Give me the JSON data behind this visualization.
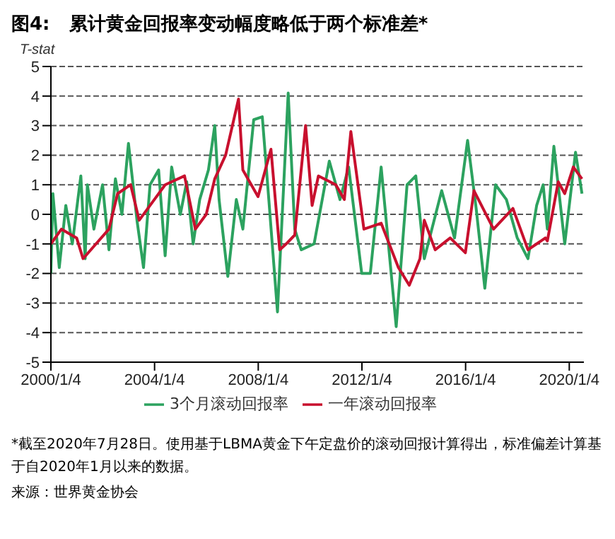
{
  "chart_data": {
    "type": "line",
    "title": "图4:   累计黄金回报率变动幅度略低于两个标准差*",
    "ylabel": "T-stat",
    "xlim": [
      "2000-01-04",
      "2020-07-28"
    ],
    "xticks": [
      {
        "value": "2000-01-04",
        "label": "2000/1/4"
      },
      {
        "value": "2004-01-04",
        "label": "2004/1/4"
      },
      {
        "value": "2008-01-04",
        "label": "2008/1/4"
      },
      {
        "value": "2012-01-04",
        "label": "2012/1/4"
      },
      {
        "value": "2016-01-04",
        "label": "2016/1/4"
      },
      {
        "value": "2020-01-04",
        "label": "2020/1/4"
      }
    ],
    "ylim": [
      -5,
      5
    ],
    "yticks": [
      -5,
      -4,
      -3,
      -2,
      -1,
      0,
      1,
      2,
      3,
      4,
      5
    ],
    "grid": "y",
    "legend": "bottom",
    "marker": "none",
    "line_style": "solid",
    "series": [
      {
        "name": "3个月滚动回报率",
        "color": "#2ca25f",
        "x": [
          "2000-01-04",
          "2000-02",
          "2000-05",
          "2000-08",
          "2000-11",
          "2001-03",
          "2001-05",
          "2001-06",
          "2001-09",
          "2002-01",
          "2002-04",
          "2002-07",
          "2002-10",
          "2003-01",
          "2003-05",
          "2003-08",
          "2003-11",
          "2004-03",
          "2004-06",
          "2004-09",
          "2005-01",
          "2005-04",
          "2005-07",
          "2005-10",
          "2006-02",
          "2006-05",
          "2006-07",
          "2006-11",
          "2007-03",
          "2007-06",
          "2007-11",
          "2008-03",
          "2008-06",
          "2008-10",
          "2009-03",
          "2009-06",
          "2009-09",
          "2010-03",
          "2010-10",
          "2011-03",
          "2011-07",
          "2012-01",
          "2012-05",
          "2012-10",
          "2013-05",
          "2013-10",
          "2014-02",
          "2014-06",
          "2015-02",
          "2015-08",
          "2016-02",
          "2016-06",
          "2016-10",
          "2017-03",
          "2017-08",
          "2018-01",
          "2018-06",
          "2018-10",
          "2019-01",
          "2019-03",
          "2019-06",
          "2019-11",
          "2020-04",
          "2020-07"
        ],
        "values": [
          -2.0,
          0.7,
          -1.8,
          0.3,
          -1.0,
          1.3,
          -1.5,
          1.0,
          -0.5,
          1.0,
          -1.2,
          1.2,
          0.0,
          2.4,
          -0.2,
          -1.8,
          1.0,
          1.5,
          -1.4,
          1.6,
          0.0,
          1.1,
          -1.0,
          0.5,
          1.5,
          3.0,
          0.5,
          -2.1,
          0.5,
          -0.5,
          3.2,
          3.3,
          0.5,
          -3.3,
          4.1,
          -0.5,
          -1.2,
          -1.0,
          1.8,
          0.5,
          1.6,
          -2.0,
          -2.0,
          1.6,
          -3.8,
          1.0,
          1.3,
          -1.5,
          0.8,
          -0.8,
          2.5,
          0.2,
          -2.5,
          1.0,
          0.5,
          -0.8,
          -1.5,
          0.3,
          1.0,
          -0.5,
          2.3,
          -1.0,
          2.1,
          0.7
        ]
      },
      {
        "name": "一年滚动回报率",
        "color": "#c8102e",
        "x": [
          "2000-01-04",
          "2000-06",
          "2001-01",
          "2001-04",
          "2001-10",
          "2002-04",
          "2002-08",
          "2003-02",
          "2003-06",
          "2004-01",
          "2004-06",
          "2005-03",
          "2005-08",
          "2006-01",
          "2006-05",
          "2006-10",
          "2007-04",
          "2007-06",
          "2008-01",
          "2008-07",
          "2008-11",
          "2009-02",
          "2009-06",
          "2009-11",
          "2010-02",
          "2010-05",
          "2011-01",
          "2011-05",
          "2011-08",
          "2012-02",
          "2012-10",
          "2013-06",
          "2013-11",
          "2014-04",
          "2014-06",
          "2014-11",
          "2015-06",
          "2016-01",
          "2016-05",
          "2017-02",
          "2017-11",
          "2018-06",
          "2019-02",
          "2019-03",
          "2019-08",
          "2019-11",
          "2020-03",
          "2020-07"
        ],
        "values": [
          -1.0,
          -0.5,
          -0.8,
          -1.5,
          -1.0,
          -0.5,
          0.7,
          1.0,
          -0.2,
          0.5,
          1.0,
          1.3,
          -0.5,
          0.0,
          1.2,
          2.0,
          3.9,
          1.5,
          0.6,
          2.2,
          -1.2,
          -1.0,
          -0.7,
          3.0,
          0.3,
          1.3,
          1.0,
          0.5,
          2.8,
          -0.5,
          -0.3,
          -1.8,
          -2.4,
          -1.5,
          -0.2,
          -1.2,
          -0.8,
          -1.3,
          0.8,
          -0.5,
          0.2,
          -1.2,
          -0.8,
          -0.9,
          1.1,
          0.7,
          1.6,
          1.2
        ]
      }
    ],
    "annotations": [
      "*截至2020年7月28日。使用基于LBMA黄金下午定盘价的滚动回报计算得出，标准偏差计算基于自2020年1月以来的数据。",
      "来源：世界黄金协会"
    ]
  }
}
